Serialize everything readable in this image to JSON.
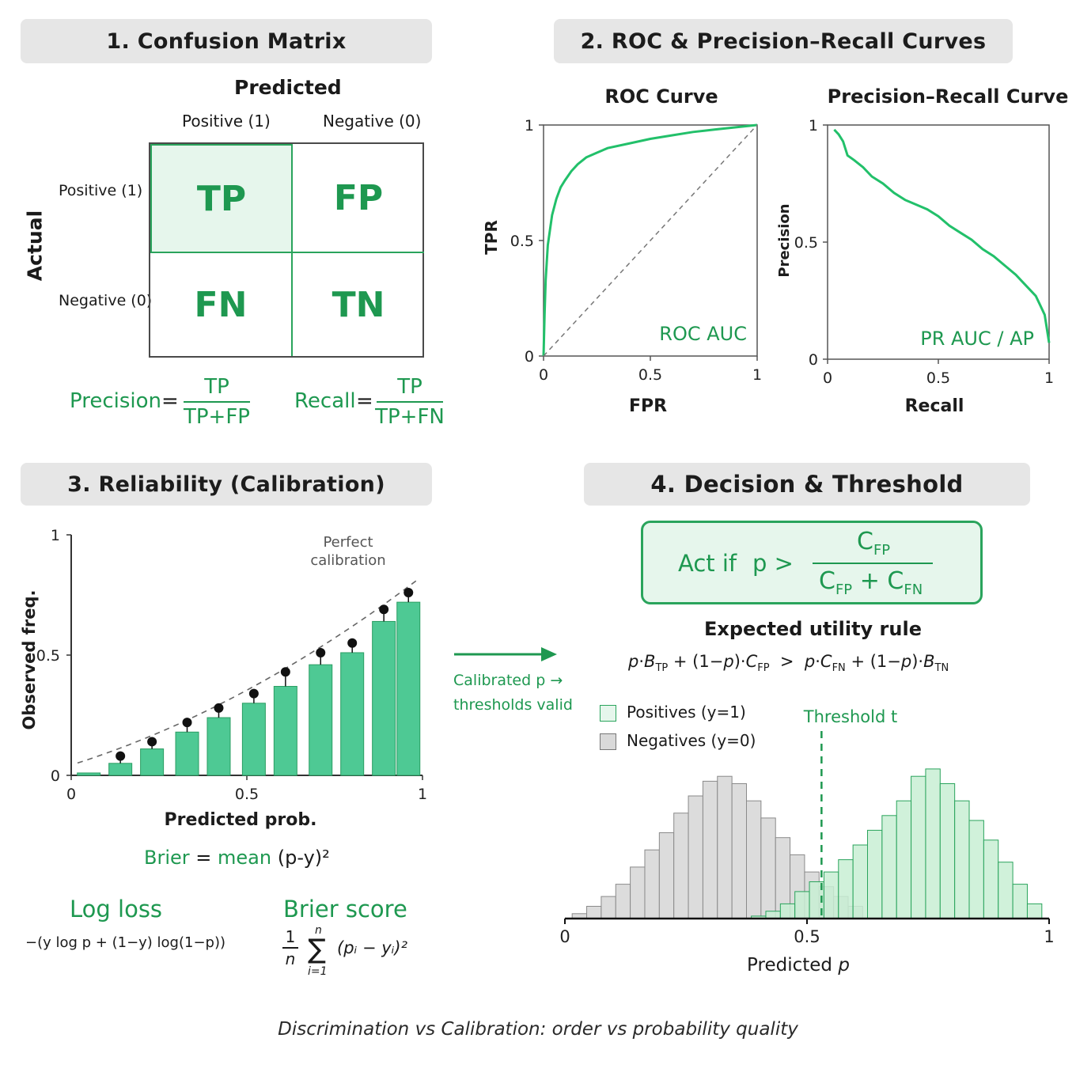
{
  "sections": {
    "s1": "1. Confusion Matrix",
    "s2": "2. ROC & Precision–Recall Curves",
    "s3": "3. Reliability (Calibration)",
    "s4": "4. Decision & Threshold"
  },
  "confusion": {
    "predicted": "Predicted",
    "actual": "Actual",
    "col_pos": "Positive (1)",
    "col_neg": "Negative (0)",
    "row_pos": "Positive (1)",
    "row_neg": "Negative (0)",
    "tp": "TP",
    "fp": "FP",
    "fn": "FN",
    "tn": "TN",
    "precision_label": "Precision",
    "precision_num": "TP",
    "precision_den": "TP+FP",
    "recall_label": "Recall",
    "recall_num": "TP",
    "recall_den": "TP+FN",
    "equals": "="
  },
  "roc": {
    "title": "ROC Curve",
    "xlabel": "FPR",
    "ylabel": "TPR",
    "annotation": "ROC AUC"
  },
  "pr": {
    "title": "Precision–Recall Curve",
    "xlabel": "Recall",
    "ylabel": "Precision",
    "annotation": "PR AUC / AP"
  },
  "calib": {
    "xlabel": "Predicted prob.",
    "ylabel": "Observed freq.",
    "perfect_1": "Perfect",
    "perfect_2": "calibration",
    "brier_eq_1": "Brier",
    "brier_eq_2": "=",
    "brier_eq_3": "mean",
    "brier_eq_4": "(p-y)²"
  },
  "arrow_caption": {
    "line1": "Calibrated p →",
    "line2": "thresholds valid"
  },
  "metrics": {
    "logloss_title": "Log loss",
    "logloss_formula": "−(y log p + (1−y) log(1−p))",
    "brier_title": "Brier score",
    "brier_sum_top": "n",
    "brier_sum_bottom": "i=1",
    "brier_frac_num": "1",
    "brier_frac_den": "n",
    "brier_sigma": "∑",
    "brier_term": "(pᵢ − yᵢ)²"
  },
  "decision": {
    "act_if": "Act if",
    "p_gt": "p >",
    "num": "C",
    "num_sub": "FP",
    "den_a": "C",
    "den_a_sub": "FP",
    "den_plus": " + ",
    "den_b": "C",
    "den_b_sub": "FN",
    "utility_title": "Expected utility rule",
    "util_p1": "p",
    "util_dot1": "·",
    "util_b1": "B",
    "util_b1_sub": "TP",
    "util_plus1": " + (1−",
    "util_p2": "p",
    "util_close1": ")·",
    "util_c1": "C",
    "util_c1_sub": "FP",
    "util_gt": "  >  ",
    "util_p3": "p",
    "util_dot2": "·",
    "util_c2": "C",
    "util_c2_sub": "FN",
    "util_plus2": " + (1−",
    "util_p4": "p",
    "util_close2": ")·",
    "util_b2": "B",
    "util_b2_sub": "TN",
    "legend_pos": "Positives (y=1)",
    "legend_neg": "Negatives (y=0)",
    "threshold": "Threshold t",
    "xlabel_main": "Predicted ",
    "xlabel_p": "p"
  },
  "footer": "Discrimination vs Calibration: order vs probability quality",
  "colors": {
    "green": "#1e9850",
    "bar_green": "#4ec994",
    "light_green": "#e6f6ec",
    "gray": "#d9d9d9"
  },
  "chart_data": [
    {
      "type": "line",
      "title": "ROC Curve",
      "xlabel": "FPR",
      "ylabel": "TPR",
      "xlim": [
        0,
        1
      ],
      "ylim": [
        0,
        1
      ],
      "xticks": [
        "0",
        "0.5",
        "1"
      ],
      "yticks": [
        "0",
        "0.5",
        "1"
      ],
      "series": [
        {
          "x": [
            0,
            0.005,
            0.01,
            0.02,
            0.04,
            0.06,
            0.08,
            0.1,
            0.13,
            0.16,
            0.2,
            0.25,
            0.3,
            0.4,
            0.5,
            0.6,
            0.7,
            0.8,
            0.9,
            1.0
          ],
          "y": [
            0,
            0.18,
            0.33,
            0.48,
            0.61,
            0.68,
            0.73,
            0.76,
            0.8,
            0.83,
            0.86,
            0.88,
            0.9,
            0.92,
            0.94,
            0.955,
            0.97,
            0.98,
            0.99,
            1.0
          ]
        },
        {
          "x": [
            0,
            1
          ],
          "y": [
            0,
            1
          ]
        }
      ],
      "annotations": [
        "ROC AUC"
      ]
    },
    {
      "type": "line",
      "title": "Precision–Recall Curve",
      "xlabel": "Recall",
      "ylabel": "Precision",
      "xlim": [
        0,
        1
      ],
      "ylim": [
        0,
        1
      ],
      "xticks": [
        "0",
        "0.5",
        "1"
      ],
      "yticks": [
        "0",
        "0.5",
        "1"
      ],
      "series": [
        {
          "x": [
            0.03,
            0.05,
            0.07,
            0.09,
            0.12,
            0.16,
            0.2,
            0.25,
            0.3,
            0.35,
            0.4,
            0.45,
            0.5,
            0.55,
            0.6,
            0.65,
            0.7,
            0.75,
            0.8,
            0.85,
            0.88,
            0.91,
            0.94,
            0.96,
            0.98,
            0.99,
            1.0
          ],
          "y": [
            0.98,
            0.96,
            0.93,
            0.87,
            0.85,
            0.82,
            0.78,
            0.75,
            0.71,
            0.68,
            0.66,
            0.64,
            0.61,
            0.57,
            0.54,
            0.51,
            0.47,
            0.44,
            0.4,
            0.36,
            0.33,
            0.3,
            0.27,
            0.23,
            0.19,
            0.13,
            0.07
          ]
        }
      ],
      "annotations": [
        "PR AUC / AP"
      ]
    },
    {
      "type": "bar",
      "xlabel": "Predicted prob.",
      "ylabel": "Observed freq.",
      "xlim": [
        0,
        1
      ],
      "ylim": [
        0,
        1
      ],
      "xticks": [
        "0",
        "0.5",
        "1"
      ],
      "yticks": [
        "0",
        "0.5",
        "1"
      ],
      "bins": [
        0.05,
        0.14,
        0.23,
        0.33,
        0.42,
        0.52,
        0.61,
        0.71,
        0.8,
        0.89,
        0.96
      ],
      "values": [
        0.01,
        0.05,
        0.11,
        0.18,
        0.24,
        0.3,
        0.37,
        0.46,
        0.51,
        0.64,
        0.72
      ],
      "dots": [
        null,
        0.08,
        0.14,
        0.22,
        0.28,
        0.34,
        0.43,
        0.51,
        0.55,
        0.69,
        0.76
      ],
      "reference_line": "Perfect calibration"
    },
    {
      "type": "bar",
      "xlabel": "Predicted p",
      "xlim": [
        0,
        1
      ],
      "xticks": [
        "0",
        "0.5",
        "1"
      ],
      "threshold": 0.53,
      "series": [
        {
          "name": "Negatives (y=0)",
          "x": [
            0.03,
            0.06,
            0.09,
            0.12,
            0.15,
            0.18,
            0.21,
            0.24,
            0.27,
            0.3,
            0.33,
            0.36,
            0.39,
            0.42,
            0.45,
            0.48,
            0.51,
            0.54,
            0.57,
            0.6
          ],
          "values": [
            0.02,
            0.05,
            0.09,
            0.14,
            0.21,
            0.28,
            0.35,
            0.43,
            0.5,
            0.56,
            0.58,
            0.55,
            0.48,
            0.41,
            0.33,
            0.26,
            0.19,
            0.13,
            0.09,
            0.05
          ]
        },
        {
          "name": "Positives (y=1)",
          "x": [
            0.4,
            0.43,
            0.46,
            0.49,
            0.52,
            0.55,
            0.58,
            0.61,
            0.64,
            0.67,
            0.7,
            0.73,
            0.76,
            0.79,
            0.82,
            0.85,
            0.88,
            0.91,
            0.94,
            0.97
          ],
          "values": [
            0.01,
            0.03,
            0.06,
            0.11,
            0.15,
            0.19,
            0.24,
            0.3,
            0.36,
            0.42,
            0.48,
            0.58,
            0.61,
            0.55,
            0.48,
            0.4,
            0.32,
            0.23,
            0.14,
            0.06
          ]
        }
      ],
      "legend": [
        "Positives (y=1)",
        "Negatives (y=0)"
      ]
    }
  ]
}
